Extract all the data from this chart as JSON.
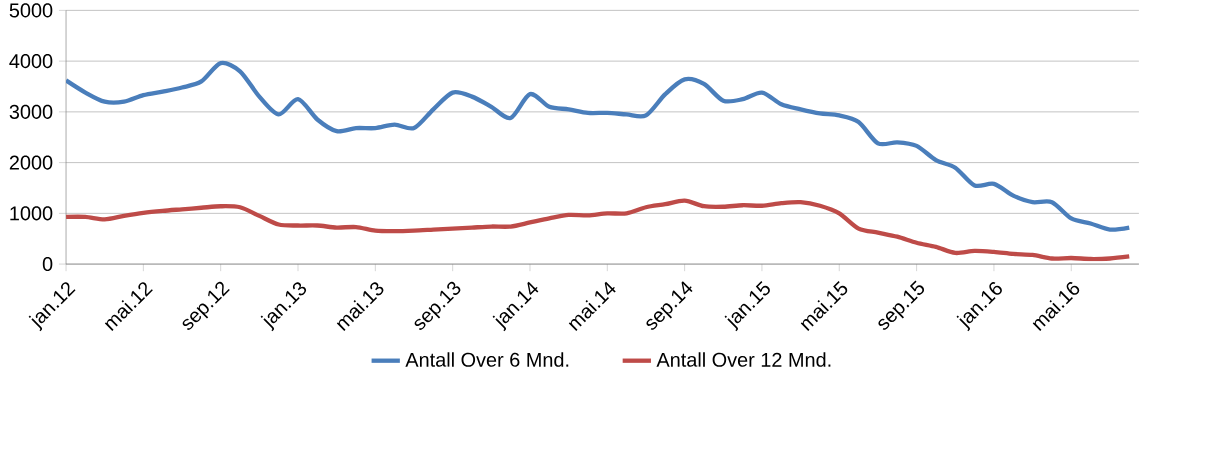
{
  "chart_data": {
    "type": "line",
    "categories": [
      "jan.12",
      null,
      null,
      null,
      "mai.12",
      null,
      null,
      null,
      "sep.12",
      null,
      null,
      null,
      "jan.13",
      null,
      null,
      null,
      "mai.13",
      null,
      null,
      null,
      "sep.13",
      null,
      null,
      null,
      "jan.14",
      null,
      null,
      null,
      "mai.14",
      null,
      null,
      null,
      "sep.14",
      null,
      null,
      null,
      "jan.15",
      null,
      null,
      null,
      "mai.15",
      null,
      null,
      null,
      "sep.15",
      null,
      null,
      null,
      "jan.16",
      null,
      null,
      null,
      "mai.16",
      null,
      null,
      null
    ],
    "series": [
      {
        "name": "Antall Over 6 Mnd.",
        "color": "#4a7ebb",
        "values": [
          3620,
          3380,
          3200,
          3200,
          3330,
          3400,
          3480,
          3600,
          3960,
          3800,
          3300,
          2950,
          3250,
          2850,
          2620,
          2680,
          2680,
          2750,
          2680,
          3050,
          3380,
          3300,
          3100,
          2880,
          3350,
          3100,
          3050,
          2980,
          2980,
          2950,
          2930,
          3350,
          3640,
          3550,
          3220,
          3250,
          3380,
          3150,
          3050,
          2970,
          2930,
          2800,
          2380,
          2400,
          2330,
          2050,
          1900,
          1550,
          1580,
          1350,
          1220,
          1220,
          900,
          800,
          680,
          720
        ]
      },
      {
        "name": "Antall Over 12 Mnd.",
        "color": "#be4b48",
        "values": [
          930,
          930,
          880,
          950,
          1010,
          1050,
          1080,
          1110,
          1140,
          1120,
          950,
          780,
          760,
          760,
          720,
          730,
          660,
          650,
          660,
          680,
          700,
          720,
          740,
          740,
          820,
          900,
          970,
          960,
          1000,
          1000,
          1120,
          1180,
          1250,
          1140,
          1130,
          1160,
          1150,
          1200,
          1220,
          1150,
          1000,
          700,
          620,
          540,
          420,
          340,
          220,
          260,
          240,
          200,
          180,
          110,
          120,
          100,
          110,
          150
        ]
      }
    ],
    "ylim": [
      0,
      5000
    ],
    "yticks": [
      0,
      1000,
      2000,
      3000,
      4000,
      5000
    ],
    "grid": "y",
    "legend": "bottom",
    "marker": "none",
    "line_style": "solid"
  }
}
